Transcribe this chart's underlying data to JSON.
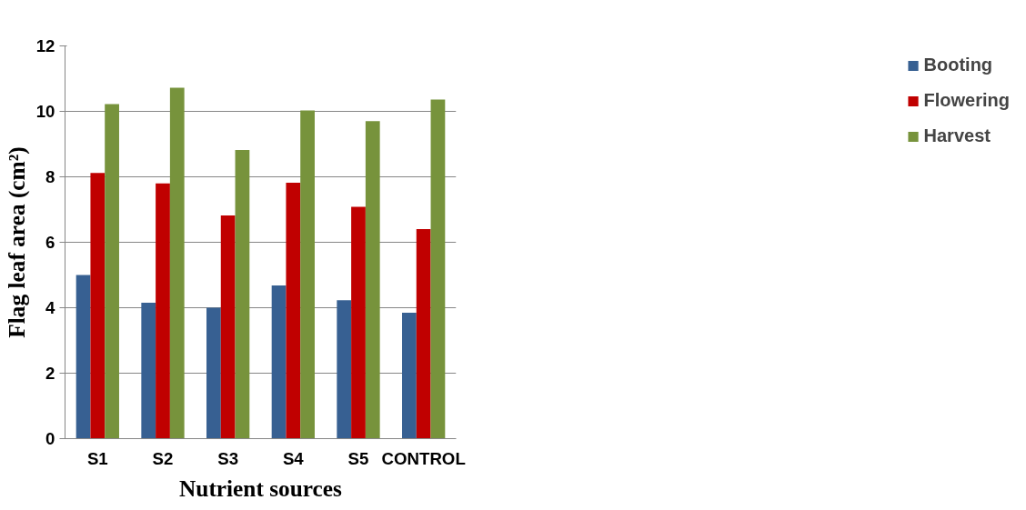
{
  "chart_data": {
    "type": "bar",
    "xlabel": "Nutrient sources",
    "ylabel": "Flag leaf area (cm²)",
    "categories": [
      "S1",
      "S2",
      "S3",
      "S4",
      "S5",
      "CONTROL"
    ],
    "series": [
      {
        "name": "Booting",
        "color": "#376092",
        "values": [
          5.0,
          4.15,
          4.0,
          4.68,
          4.23,
          3.85
        ]
      },
      {
        "name": "Flowering",
        "color": "#c00000",
        "values": [
          8.12,
          7.8,
          6.82,
          7.82,
          7.08,
          6.4
        ]
      },
      {
        "name": "Harvest",
        "color": "#77933c",
        "values": [
          10.22,
          10.72,
          8.82,
          10.03,
          9.7,
          10.36
        ]
      }
    ],
    "ylim": [
      0,
      12
    ],
    "yticks": [
      0,
      2,
      4,
      6,
      8,
      10,
      12
    ],
    "grid": "y",
    "legend": "right"
  }
}
